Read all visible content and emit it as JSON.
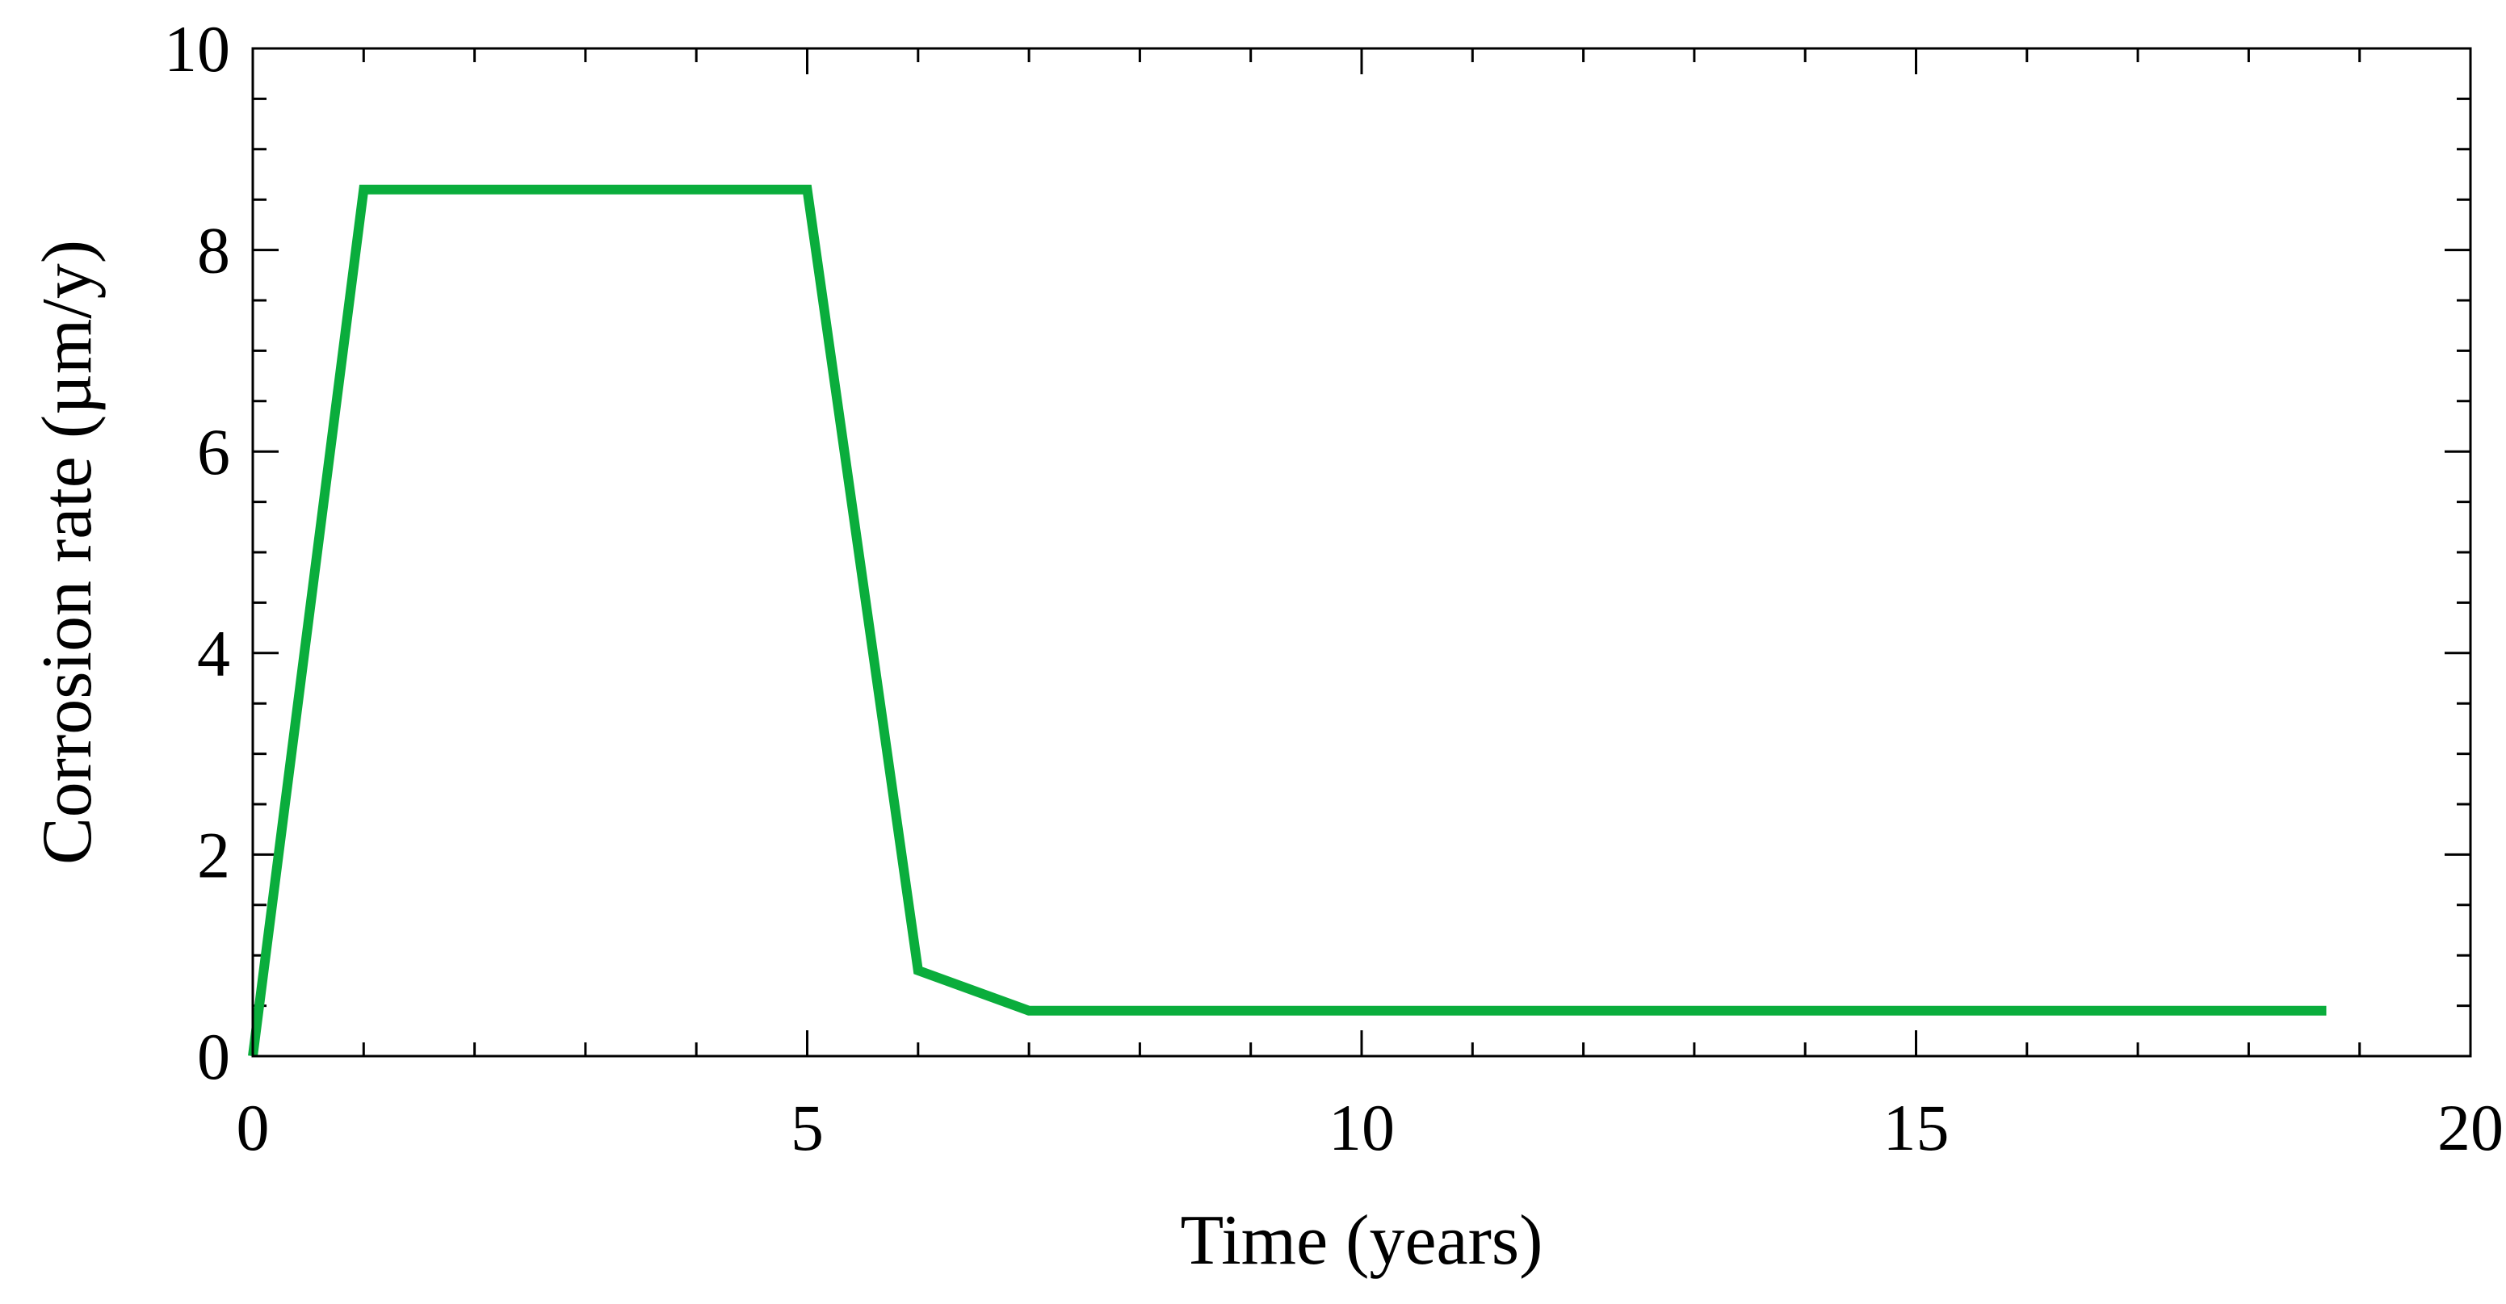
{
  "chart_data": {
    "type": "line",
    "title": "",
    "xlabel": "Time (years)",
    "ylabel": "Corrosion rate (µm/y)",
    "xlim": [
      0,
      20
    ],
    "ylim": [
      0,
      10
    ],
    "x_ticks": [
      0,
      5,
      10,
      15,
      20
    ],
    "y_ticks": [
      0,
      2,
      4,
      6,
      8,
      10
    ],
    "x_tick_labels": [
      "0",
      "5",
      "10",
      "15",
      "20"
    ],
    "y_tick_labels": [
      "0",
      "2",
      "4",
      "6",
      "8",
      "10"
    ],
    "x_minor_step": 1,
    "y_minor_step": 0.5,
    "grid": false,
    "legend": "none",
    "series": [
      {
        "color": "#0aad3c",
        "x": [
          0,
          1,
          5,
          6,
          7,
          18.7
        ],
        "y": [
          0,
          8.6,
          8.6,
          0.85,
          0.45,
          0.45
        ]
      }
    ]
  }
}
